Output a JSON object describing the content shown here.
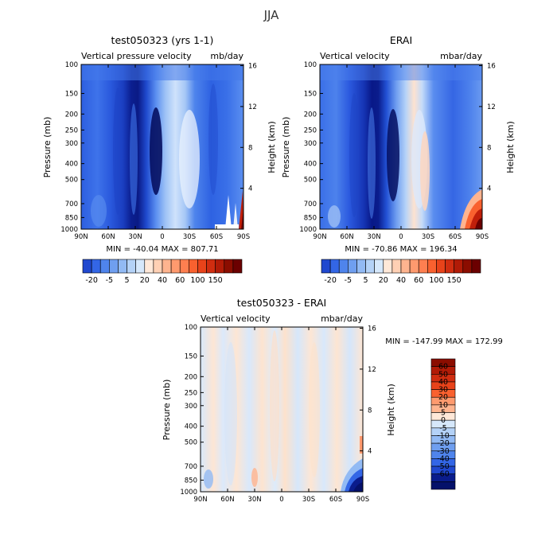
{
  "page_title": "JJA",
  "colors": {
    "pos": [
      "#ffe8d8",
      "#ffd0b4",
      "#ffb48f",
      "#ff9a6e",
      "#ff7f50",
      "#f9612f",
      "#e8431a",
      "#d02d10",
      "#b11b07",
      "#8b0d00",
      "#6b0000"
    ],
    "neg": [
      "#d6e8fb",
      "#b4d2f7",
      "#92baf4",
      "#6f9ff0",
      "#4f84ec",
      "#3366e6",
      "#2048cf",
      "#1230b2",
      "#0a1c8c",
      "#05116a"
    ]
  },
  "chart_data": [
    {
      "type": "heatmap",
      "title": "test050323 (yrs 1-1)",
      "left_string": "Vertical pressure velocity",
      "right_string": "mb/day",
      "xlabel": "",
      "ylabel": "Pressure (mb)",
      "ylabel_right": "Height (km)",
      "x_ticks": [
        "90N",
        "60N",
        "30N",
        "0",
        "30S",
        "60S",
        "90S"
      ],
      "y_ticks": [
        "100",
        "150",
        "200",
        "250",
        "300",
        "400",
        "500",
        "700",
        "850",
        "1000"
      ],
      "y_ticks_right": [
        "16",
        "12",
        "8",
        "4"
      ],
      "min_max": "MIN = -40.04   MAX = 807.71",
      "colorbar_labels": [
        "-20",
        "-5",
        "5",
        "20",
        "40",
        "60",
        "100",
        "150"
      ]
    },
    {
      "type": "heatmap",
      "title": "ERAI",
      "left_string": "Vertical velocity",
      "right_string": "mbar/day",
      "xlabel": "",
      "ylabel": "Pressure (mb)",
      "ylabel_right": "Height (km)",
      "x_ticks": [
        "90N",
        "60N",
        "30N",
        "0",
        "30S",
        "60S",
        "90S"
      ],
      "y_ticks": [
        "100",
        "150",
        "200",
        "250",
        "300",
        "400",
        "500",
        "700",
        "850",
        "1000"
      ],
      "y_ticks_right": [
        "16",
        "12",
        "8",
        "4"
      ],
      "min_max": "MIN = -70.86   MAX = 196.34",
      "colorbar_labels": [
        "-20",
        "-5",
        "5",
        "20",
        "40",
        "60",
        "100",
        "150"
      ]
    },
    {
      "type": "heatmap",
      "title": "test050323 - ERAI",
      "left_string": "Vertical velocity",
      "right_string": "mbar/day",
      "xlabel": "",
      "ylabel": "Pressure (mb)",
      "ylabel_right": "Height (km)",
      "x_ticks": [
        "90N",
        "60N",
        "30N",
        "0",
        "30S",
        "60S",
        "90S"
      ],
      "y_ticks": [
        "100",
        "150",
        "200",
        "250",
        "300",
        "400",
        "500",
        "700",
        "850",
        "1000"
      ],
      "y_ticks_right": [
        "16",
        "12",
        "8",
        "4"
      ],
      "min_max": "MIN = -147.99   MAX = 172.99",
      "colorbar_labels": [
        "60",
        "50",
        "40",
        "30",
        "20",
        "10",
        "5",
        "0",
        "-5",
        "-10",
        "-20",
        "-30",
        "-40",
        "-50",
        "-60"
      ]
    }
  ]
}
